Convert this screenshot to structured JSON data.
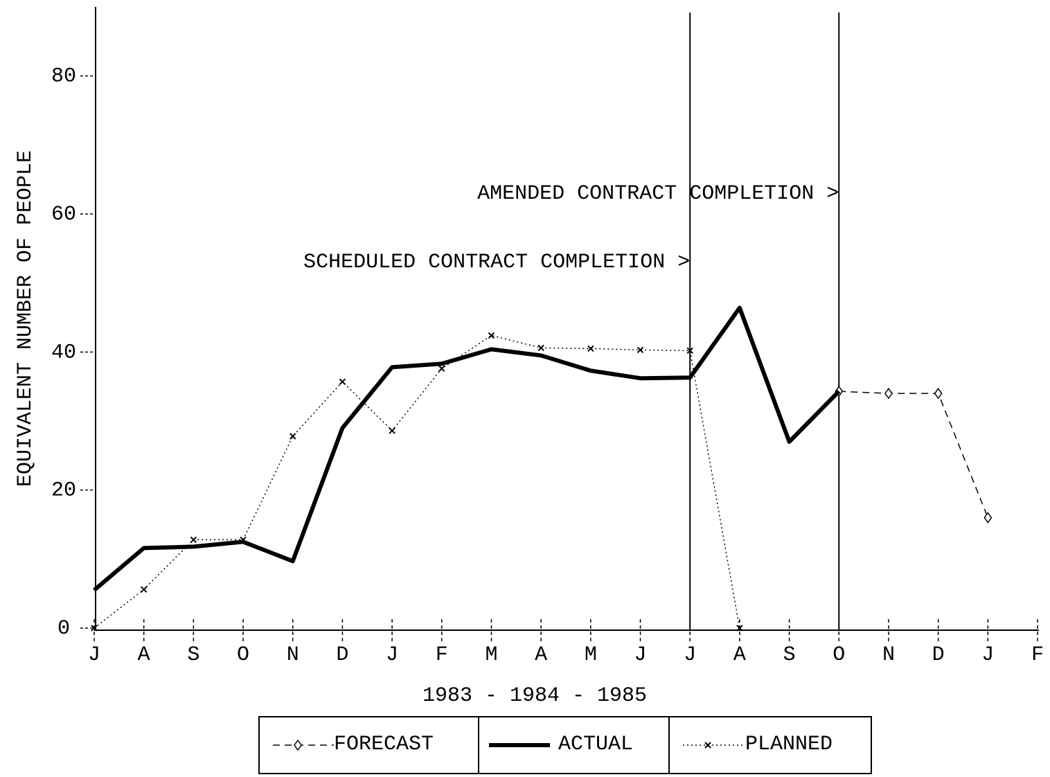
{
  "chart_data": {
    "type": "line",
    "xlabel": "1983 - 1984 - 1985",
    "ylabel": "EQUIVALENT NUMBER OF PEOPLE",
    "categories": [
      "J",
      "A",
      "S",
      "O",
      "N",
      "D",
      "J",
      "F",
      "M",
      "A",
      "M",
      "J",
      "J",
      "A",
      "S",
      "O",
      "N",
      "D",
      "J",
      "F"
    ],
    "ylim": [
      0,
      90
    ],
    "yticks": [
      0,
      20,
      40,
      60,
      80
    ],
    "series": [
      {
        "name": "FORECAST",
        "color": "#000000",
        "style": "dashed",
        "marker": "diamond",
        "values": [
          null,
          null,
          null,
          null,
          null,
          null,
          null,
          null,
          null,
          null,
          null,
          null,
          null,
          null,
          null,
          34.3,
          34,
          34,
          16,
          null
        ]
      },
      {
        "name": "ACTUAL",
        "color": "#000000",
        "style": "solid",
        "marker": "none",
        "values": [
          5.5,
          11.6,
          11.8,
          12.5,
          9.7,
          29,
          37.8,
          38.3,
          40.4,
          39.5,
          37.3,
          36.2,
          36.3,
          46.4,
          27,
          34.3,
          null,
          null,
          null,
          null
        ]
      },
      {
        "name": "PLANNED",
        "color": "#000000",
        "style": "dotted",
        "marker": "x",
        "values": [
          0,
          5.6,
          12.8,
          12.8,
          27.8,
          35.7,
          28.6,
          37.6,
          42.4,
          40.6,
          40.5,
          40.3,
          40.2,
          0,
          null,
          null,
          null,
          null,
          null,
          null
        ]
      }
    ],
    "reference_lines": [
      {
        "category_index": 12,
        "label": "SCHEDULED CONTRACT COMPLETION >"
      },
      {
        "category_index": 15,
        "label": "AMENDED CONTRACT COMPLETION >"
      }
    ]
  }
}
